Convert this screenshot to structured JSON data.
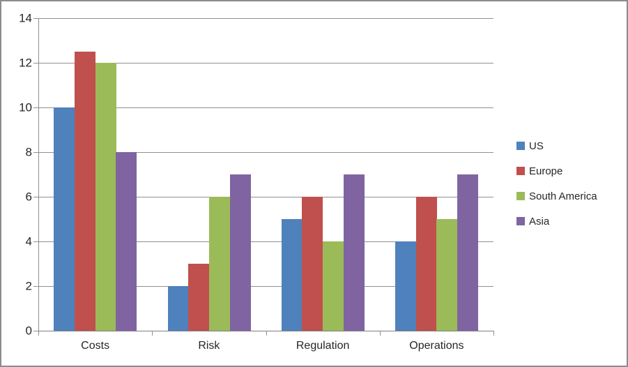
{
  "chart_data": {
    "type": "bar",
    "title": "",
    "xlabel": "",
    "ylabel": "",
    "categories": [
      "Costs",
      "Risk",
      "Regulation",
      "Operations"
    ],
    "series": [
      {
        "name": "US",
        "color": "#4F81BD",
        "values": [
          10,
          2,
          5,
          4
        ]
      },
      {
        "name": "Europe",
        "color": "#C0504D",
        "values": [
          12.5,
          3,
          6,
          6
        ]
      },
      {
        "name": "South America",
        "color": "#9BBB59",
        "values": [
          12,
          6,
          4,
          5
        ]
      },
      {
        "name": "Asia",
        "color": "#8064A2",
        "values": [
          8,
          7,
          7,
          7
        ]
      }
    ],
    "ylim": [
      0,
      14
    ],
    "ytick_step": 2,
    "grid": true,
    "legend_position": "right"
  },
  "y_tick_labels": [
    "0",
    "2",
    "4",
    "6",
    "8",
    "10",
    "12",
    "14"
  ],
  "colors": {
    "gridline": "#8F8F8F",
    "axis": "#7F7F7F",
    "border": "#8C8C8C",
    "text": "#262626",
    "background": "#FFFFFF"
  }
}
